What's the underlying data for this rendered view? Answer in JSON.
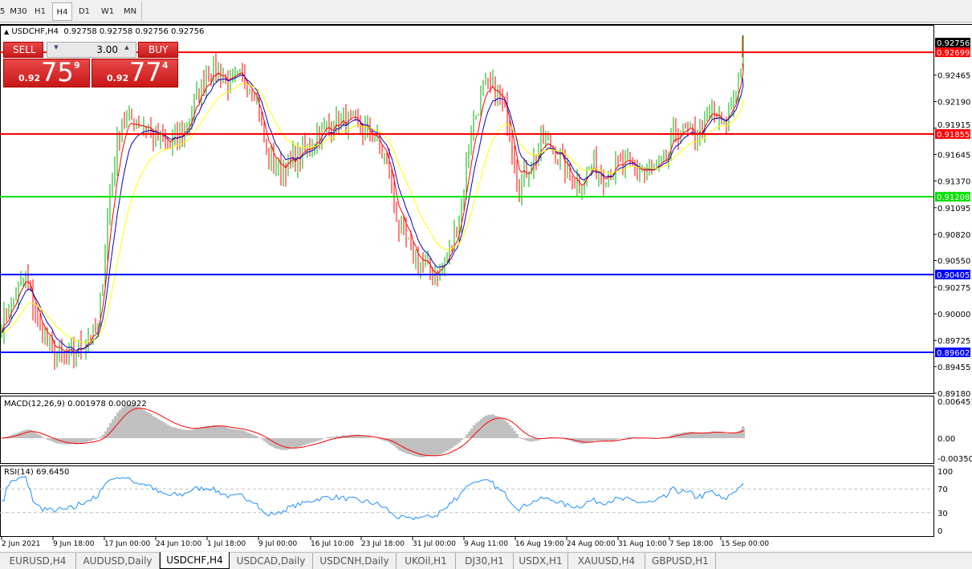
{
  "timeframes": [
    "5",
    "M30",
    "H1",
    "H4",
    "D1",
    "W1",
    "MN"
  ],
  "active_timeframe": "H4",
  "header": {
    "arrow": "▲",
    "symbol": "USDCHF,H4",
    "ohlc": "0.92758 0.92758 0.92756 0.92756"
  },
  "trade_panel": {
    "sell_label": "SELL",
    "buy_label": "BUY",
    "lot": "3.00",
    "sell_prefix": "0.92",
    "sell_big": "75",
    "sell_sup": "9",
    "buy_prefix": "0.92",
    "buy_big": "77",
    "buy_sup": "4"
  },
  "chart_data": {
    "type": "ohlc-bar",
    "symbol": "USDCHF",
    "timeframe": "H4",
    "closes": [
      0.89902,
      0.90152,
      0.90401,
      0.89902,
      0.89652,
      0.89552,
      0.89568,
      0.89752,
      0.89818,
      0.91275,
      0.92025,
      0.92,
      0.91941,
      0.918,
      0.91733,
      0.91858,
      0.92149,
      0.92483,
      0.92524,
      0.92358,
      0.92441,
      0.92316,
      0.9165,
      0.915,
      0.91567,
      0.9165,
      0.91816,
      0.91941,
      0.91983,
      0.91966,
      0.919,
      0.91816,
      0.91567,
      0.90901,
      0.90651,
      0.90484,
      0.90401,
      0.90568,
      0.90984,
      0.919,
      0.92316,
      0.92316,
      0.92025,
      0.91317,
      0.91567,
      0.91775,
      0.91691,
      0.91442,
      0.91334,
      0.91525,
      0.91442,
      0.91525,
      0.91525,
      0.91483,
      0.91442,
      0.91525,
      0.919,
      0.91858,
      0.91858,
      0.92108,
      0.919,
      0.92316,
      0.92756
    ],
    "price_ylim": [
      0.8918,
      0.92965
    ],
    "price_ticks": [
      "0.92465",
      "0.92190",
      "0.91915",
      "0.91645",
      "0.91370",
      "0.91095",
      "0.90820",
      "0.90550",
      "0.90275",
      "0.90000",
      "0.89725",
      "0.89455",
      "0.89180"
    ],
    "current_price": "0.92756",
    "hlines": [
      {
        "value": "0.92699",
        "color": "#ff0000"
      },
      {
        "value": "0.91855",
        "color": "#ff0000"
      },
      {
        "value": "0.91208",
        "color": "#00e000"
      },
      {
        "value": "0.90405",
        "color": "#0000ff"
      },
      {
        "value": "0.89602",
        "color": "#0000ff"
      }
    ],
    "ma_colors": [
      "#ff0000",
      "#0000cc",
      "#ffff00"
    ],
    "bull_color": "#00b000",
    "bear_color": "#ff0000",
    "time_ticks": [
      "2 Jun 2021",
      "9 Jun 18:00",
      "17 Jun 00:00",
      "24 Jun 10:00",
      "1 Jul 18:00",
      "9 Jul 00:00",
      "16 Jul 10:00",
      "23 Jul 18:00",
      "31 Jul 00:00",
      "9 Aug 11:00",
      "16 Aug 19:00",
      "24 Aug 00:00",
      "31 Aug 10:00",
      "7 Sep 18:00",
      "15 Sep 00:00"
    ],
    "macd": {
      "label": "MACD(12,26,9) 0.001978 0.000922",
      "ticks": [
        "0.006451",
        "0.00",
        "-0.003507"
      ],
      "ylim": [
        -0.003507,
        0.006451
      ]
    },
    "rsi": {
      "label": "RSI(14) 69.6450",
      "ticks": [
        "100",
        "70",
        "30",
        "0"
      ],
      "levels": [
        70,
        30
      ]
    }
  },
  "tabs": [
    "EURUSD,H4",
    "AUDUSD,Daily",
    "USDCHF,H4",
    "USDCAD,Daily",
    "USDCNH,Daily",
    "UKOil,H1",
    "DJ30,H1",
    "USDX,H1",
    "XAUUSD,H4",
    "GBPUSD,H1"
  ],
  "active_tab": "USDCHF,H4"
}
